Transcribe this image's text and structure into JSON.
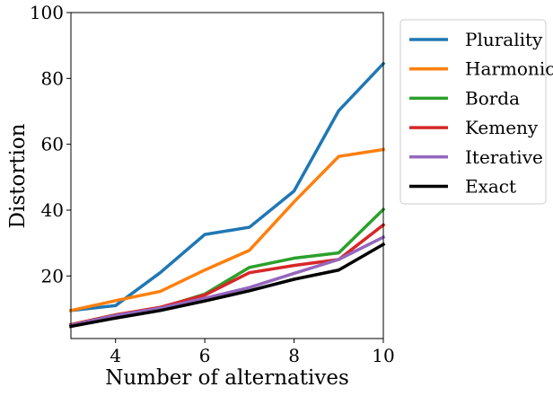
{
  "chart_data": {
    "type": "line",
    "title": "",
    "xlabel": "Number of alternatives",
    "ylabel": "Distortion",
    "xlim": [
      3,
      10
    ],
    "ylim": [
      1,
      100
    ],
    "xticks": [
      "4",
      "6",
      "8",
      "10"
    ],
    "yticks": [
      "20",
      "40",
      "60",
      "80",
      "100"
    ],
    "grid": false,
    "legend_position": "outside-right-top",
    "x": [
      3,
      4,
      5,
      6,
      7,
      8,
      9,
      10
    ],
    "series": [
      {
        "name": "Plurality",
        "color": "#1f77b4",
        "values": [
          9.5,
          11,
          21,
          32.6,
          34.8,
          45.8,
          70.2,
          84.5
        ]
      },
      {
        "name": "Harmonic",
        "color": "#ff7f0e",
        "values": [
          9.5,
          12.5,
          15.3,
          21.8,
          27.8,
          42.5,
          56.3,
          58.4
        ]
      },
      {
        "name": "Borda",
        "color": "#2ca02c",
        "values": [
          5.2,
          8.2,
          10.3,
          14.5,
          22.6,
          25.4,
          27,
          40.2
        ]
      },
      {
        "name": "Kemeny",
        "color": "#d62728",
        "values": [
          5.2,
          8.2,
          10.5,
          14.2,
          21,
          23.2,
          25,
          35.5
        ]
      },
      {
        "name": "Iterative",
        "color": "#9467bd",
        "values": [
          5,
          8,
          10.2,
          13.2,
          16.5,
          20.8,
          25,
          31.8
        ]
      },
      {
        "name": "Exact",
        "color": "#000000",
        "values": [
          4.7,
          7.2,
          9.5,
          12.4,
          15.5,
          19,
          21.8,
          29.6
        ]
      }
    ]
  }
}
